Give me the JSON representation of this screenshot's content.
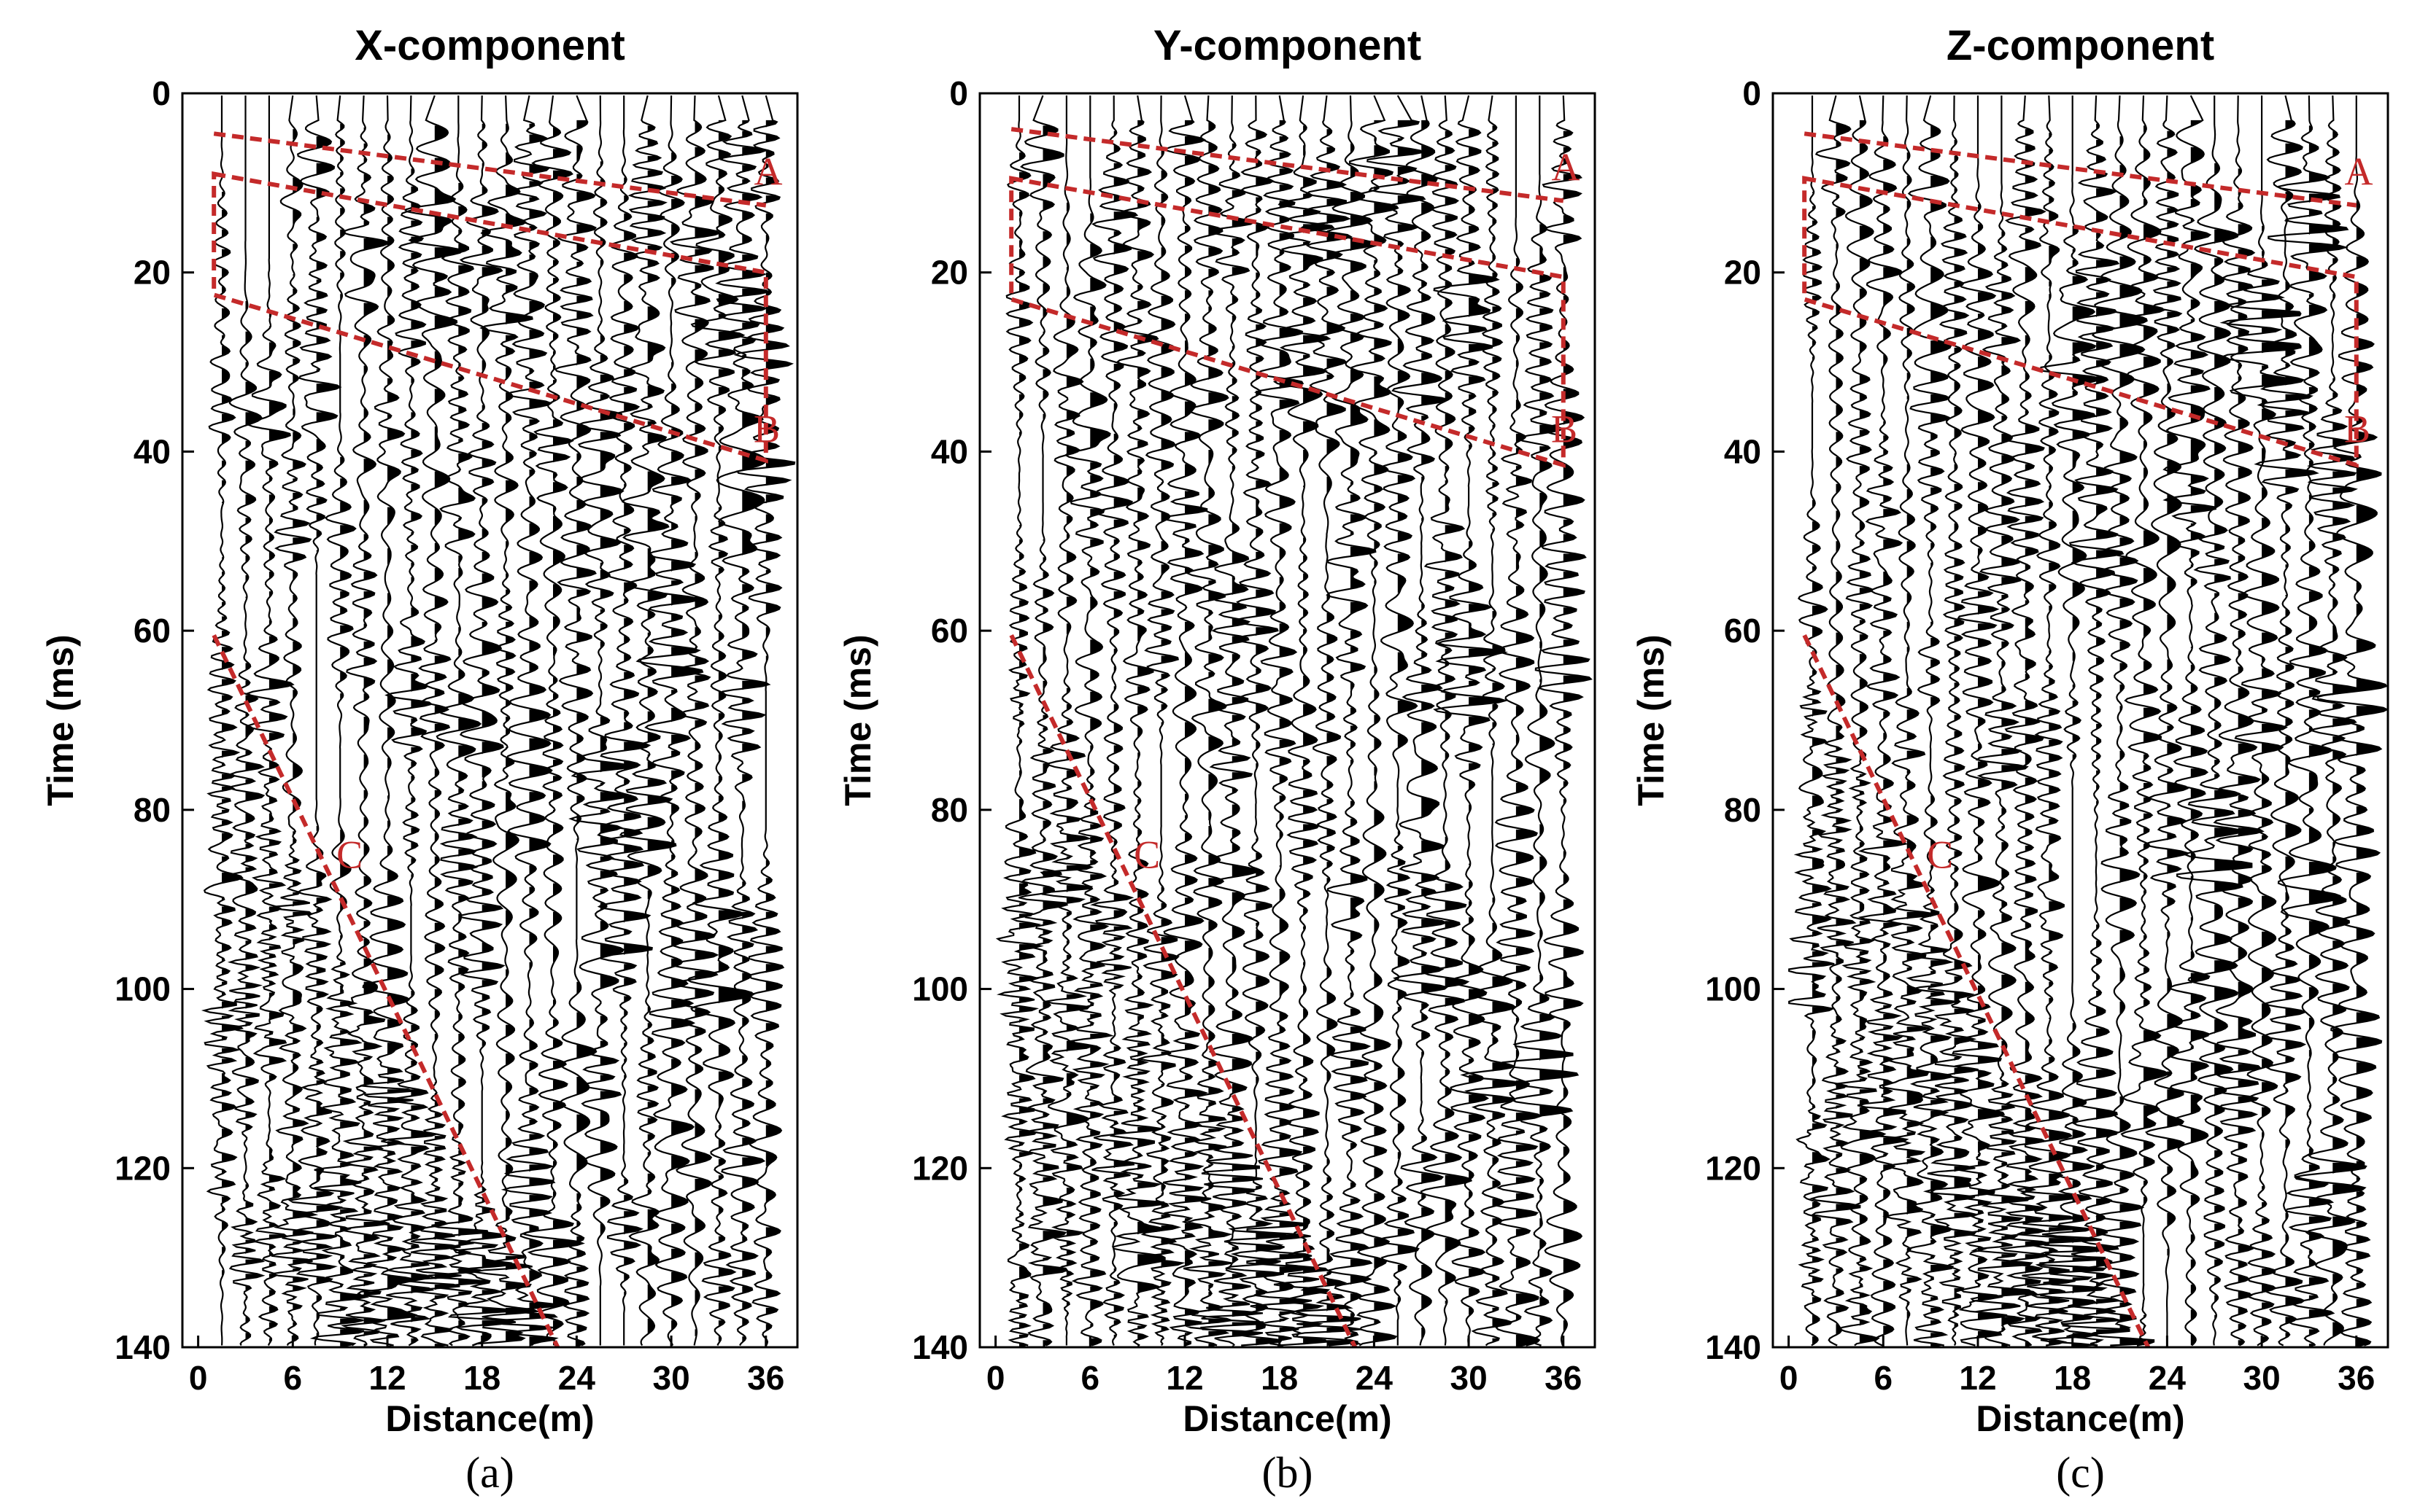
{
  "figure": {
    "colors": {
      "trace": "#000000",
      "annotation": "#c42a2a"
    },
    "chart_data": [
      {
        "type": "line",
        "subtype": "seismic-wiggle",
        "title": "X-component",
        "caption": "(a)",
        "xlabel": "Distance(m)",
        "ylabel": "Time (ms)",
        "xlim": [
          -1,
          38
        ],
        "ylim": [
          140,
          0
        ],
        "xticks": [
          "0",
          "6",
          "12",
          "18",
          "24",
          "30",
          "36"
        ],
        "yticks": [
          "0",
          "20",
          "40",
          "60",
          "80",
          "100",
          "120",
          "140"
        ],
        "trace_count": 24,
        "trace_start_m": 1.5,
        "trace_spacing_m": 1.5,
        "annotations": [
          {
            "label": "A",
            "shape": "line",
            "points": [
              [
                1,
                4.5
              ],
              [
                36,
                12.5
              ]
            ]
          },
          {
            "label": "B",
            "shape": "polygon",
            "points": [
              [
                1,
                9
              ],
              [
                36,
                20
              ],
              [
                36,
                41
              ],
              [
                1,
                22.5
              ]
            ]
          },
          {
            "label": "C",
            "shape": "line",
            "points": [
              [
                1,
                60.5
              ],
              [
                22.8,
                140
              ]
            ]
          }
        ]
      },
      {
        "type": "line",
        "subtype": "seismic-wiggle",
        "title": "Y-component",
        "caption": "(b)",
        "xlabel": "Distance(m)",
        "ylabel": "Time (ms)",
        "xlim": [
          -1,
          38
        ],
        "ylim": [
          140,
          0
        ],
        "xticks": [
          "0",
          "6",
          "12",
          "18",
          "24",
          "30",
          "36"
        ],
        "yticks": [
          "0",
          "20",
          "40",
          "60",
          "80",
          "100",
          "120",
          "140"
        ],
        "trace_count": 24,
        "trace_start_m": 1.5,
        "trace_spacing_m": 1.5,
        "annotations": [
          {
            "label": "A",
            "shape": "line",
            "points": [
              [
                1,
                4
              ],
              [
                36,
                12
              ]
            ]
          },
          {
            "label": "B",
            "shape": "polygon",
            "points": [
              [
                1,
                9.5
              ],
              [
                36,
                20.5
              ],
              [
                36,
                41.5
              ],
              [
                1,
                23
              ]
            ]
          },
          {
            "label": "C",
            "shape": "line",
            "points": [
              [
                1,
                60.5
              ],
              [
                22.8,
                140
              ]
            ]
          }
        ]
      },
      {
        "type": "line",
        "subtype": "seismic-wiggle",
        "title": "Z-component",
        "caption": "(c)",
        "xlabel": "Distance(m)",
        "ylabel": "Time (ms)",
        "xlim": [
          -1,
          38
        ],
        "ylim": [
          140,
          0
        ],
        "xticks": [
          "0",
          "6",
          "12",
          "18",
          "24",
          "30",
          "36"
        ],
        "yticks": [
          "0",
          "20",
          "40",
          "60",
          "80",
          "100",
          "120",
          "140"
        ],
        "trace_count": 24,
        "trace_start_m": 1.5,
        "trace_spacing_m": 1.5,
        "annotations": [
          {
            "label": "A",
            "shape": "line",
            "points": [
              [
                1,
                4.5
              ],
              [
                36,
                12.5
              ]
            ]
          },
          {
            "label": "B",
            "shape": "polygon",
            "points": [
              [
                1,
                9.5
              ],
              [
                36,
                20.5
              ],
              [
                36,
                41.5
              ],
              [
                1,
                23
              ]
            ]
          },
          {
            "label": "C",
            "shape": "line",
            "points": [
              [
                1,
                60.5
              ],
              [
                22.8,
                140
              ]
            ]
          }
        ]
      }
    ]
  }
}
